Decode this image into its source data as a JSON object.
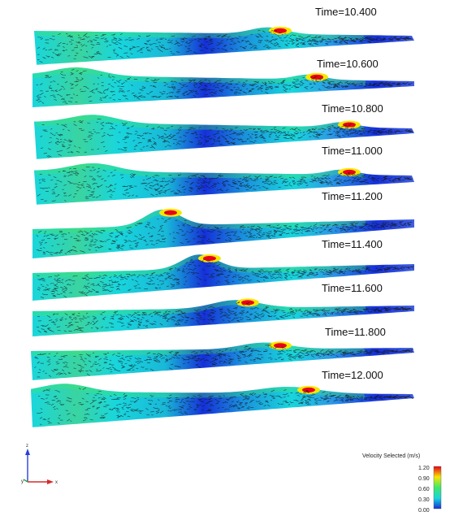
{
  "snapshots": [
    {
      "time_label": "Time=10.400"
    },
    {
      "time_label": "Time=10.600"
    },
    {
      "time_label": "Time=10.800"
    },
    {
      "time_label": "Time=11.000"
    },
    {
      "time_label": "Time=11.200"
    },
    {
      "time_label": "Time=11.400"
    },
    {
      "time_label": "Time=11.600"
    },
    {
      "time_label": "Time=11.800"
    },
    {
      "time_label": "Time=12.000"
    }
  ],
  "legend": {
    "title": "Velocity Selected (m/s)",
    "ticks": [
      "1.20",
      "0.90",
      "0.60",
      "0.30",
      "0.00"
    ],
    "colors": [
      "#e8001c",
      "#f7e600",
      "#3ee86a",
      "#19d6dc",
      "#1530d8"
    ]
  },
  "axes": {
    "z_label": "z",
    "x_label": "x",
    "y_label": "y"
  }
}
